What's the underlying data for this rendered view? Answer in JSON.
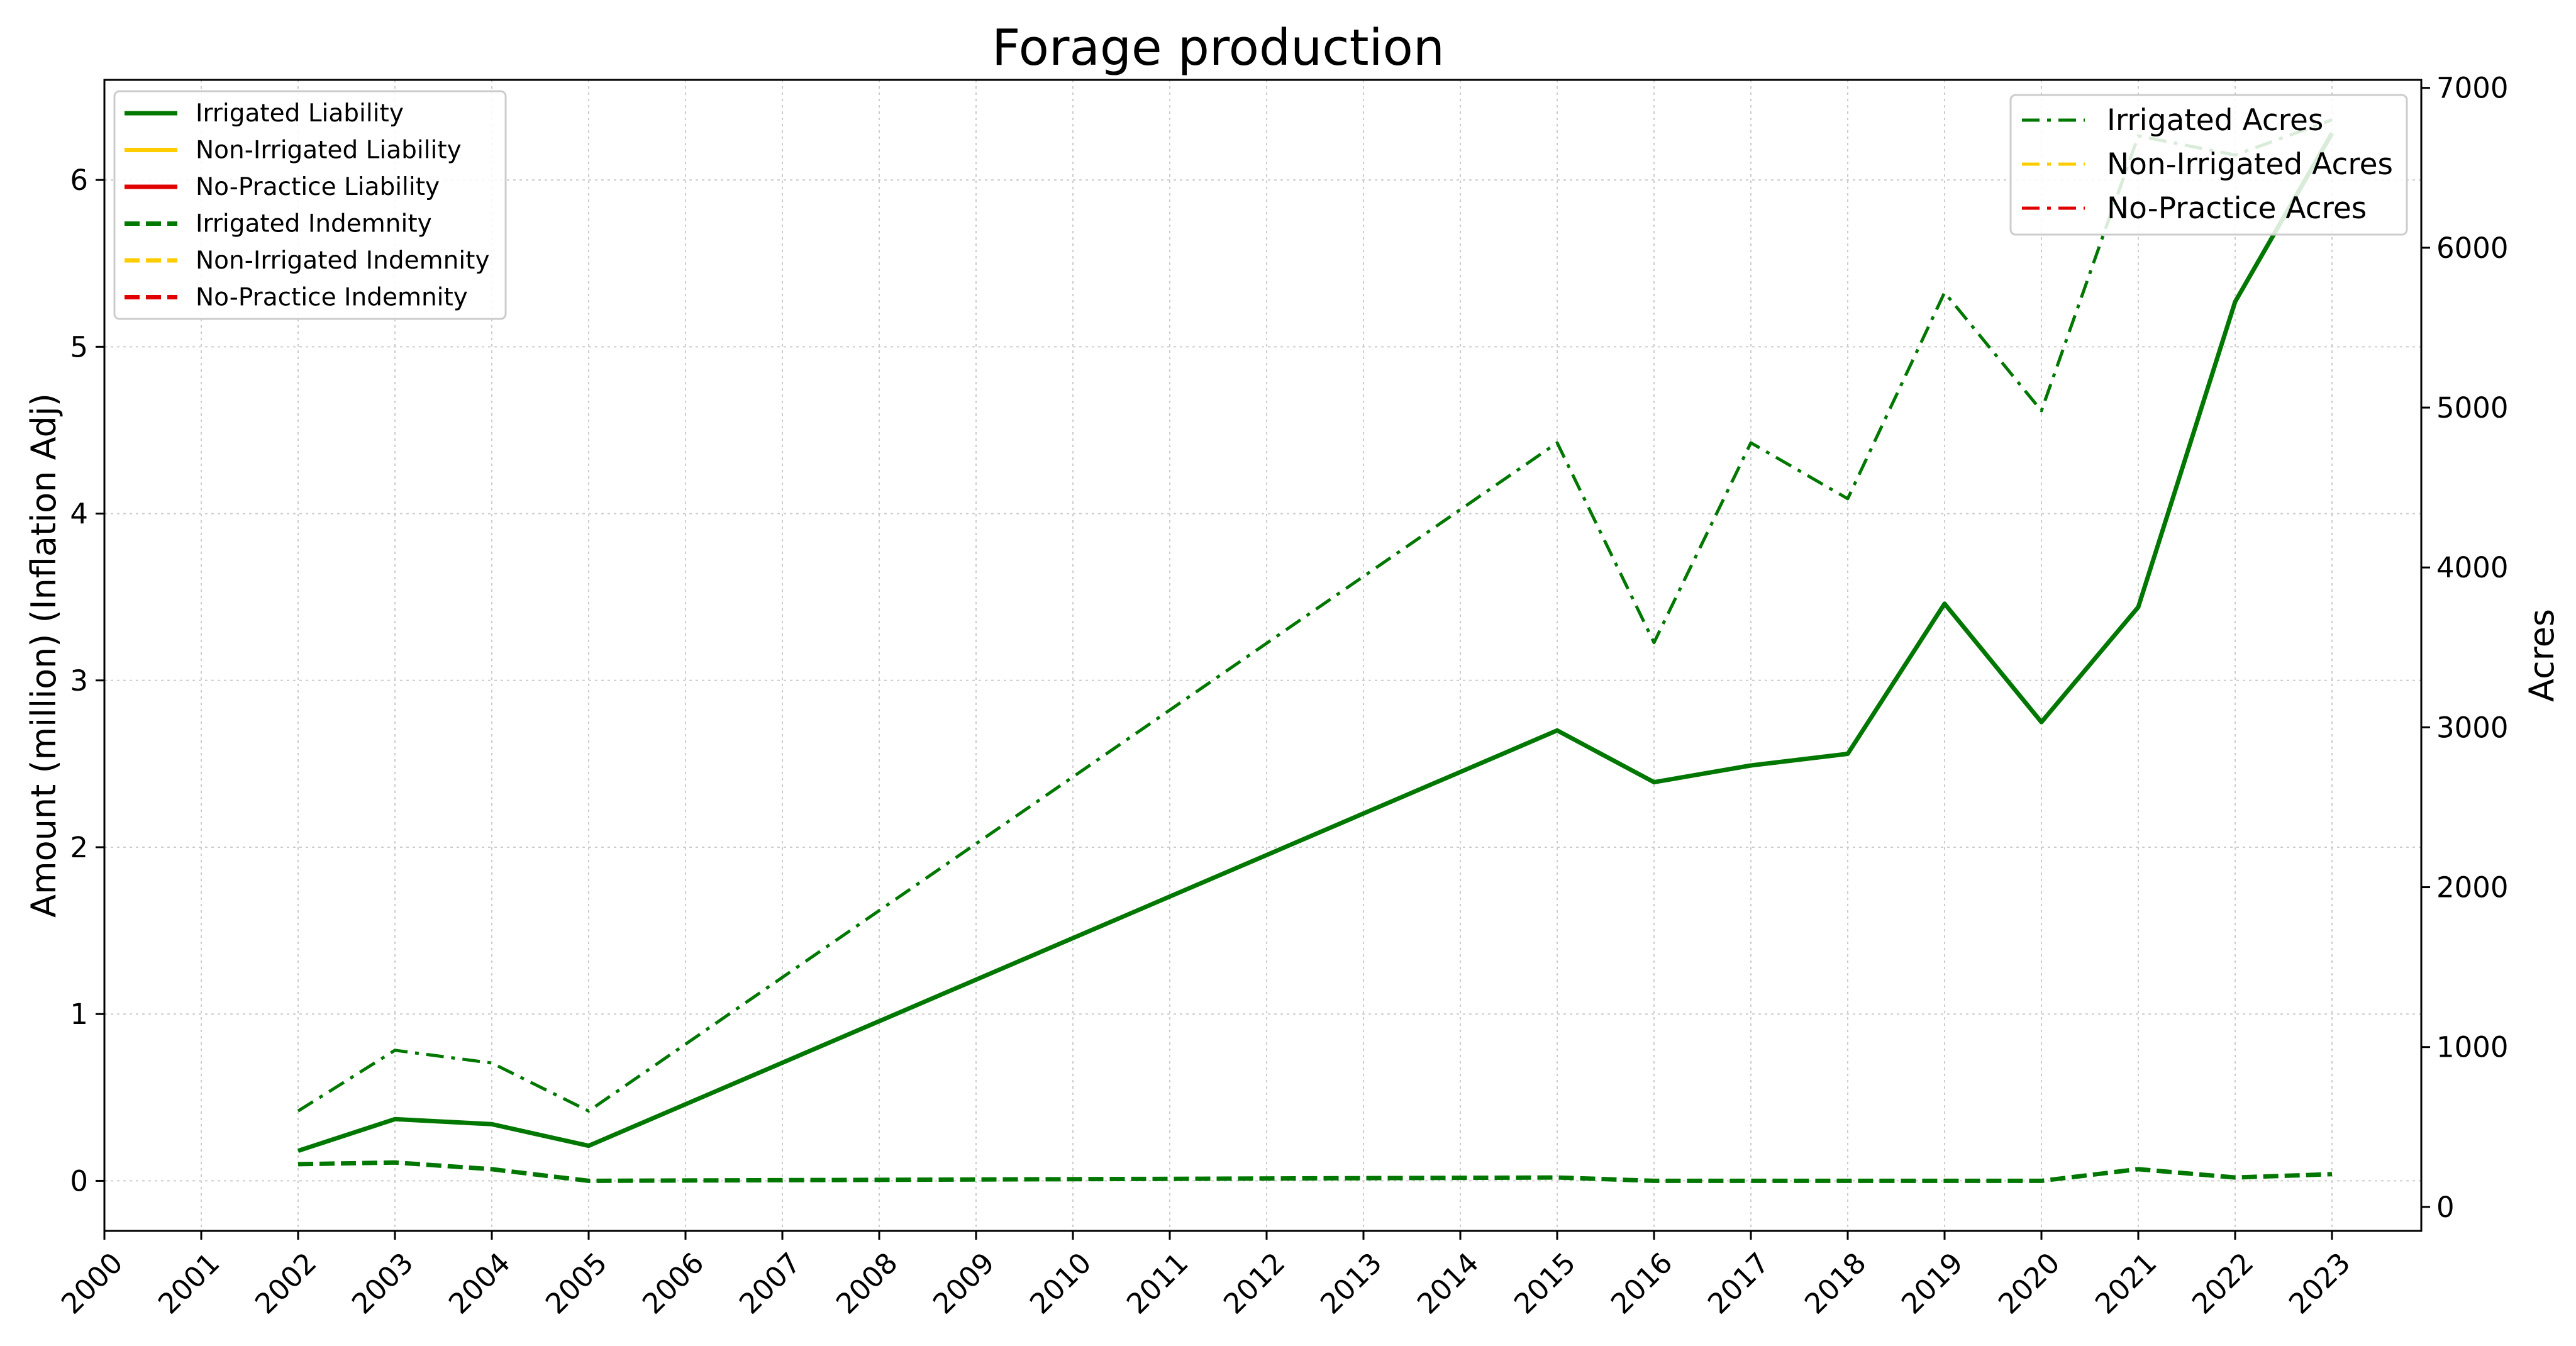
{
  "chart_data": {
    "type": "line",
    "title": "Forage production",
    "xlabel": "",
    "ylabel": "Amount (million) (Inflation Adj)",
    "y2label": "Acres",
    "x": [
      "2000",
      "2001",
      "2002",
      "2003",
      "2004",
      "2005",
      "2006",
      "2007",
      "2008",
      "2009",
      "2010",
      "2011",
      "2012",
      "2013",
      "2014",
      "2015",
      "2016",
      "2017",
      "2018",
      "2019",
      "2020",
      "2021",
      "2022",
      "2023"
    ],
    "ylim": [
      -0.3,
      6.6
    ],
    "yticks": [
      0,
      1,
      2,
      3,
      4,
      5,
      6
    ],
    "y2lim": [
      -150,
      7050
    ],
    "y2ticks": [
      0,
      1000,
      2000,
      3000,
      4000,
      5000,
      6000,
      7000
    ],
    "grid": true,
    "colors": {
      "irrigated": "#007700",
      "non_irrigated": "#ffcc00",
      "no_practice": "#e00000"
    },
    "series": [
      {
        "name": "Irrigated Liability",
        "axis": "left",
        "style": "solid",
        "color": "#007700",
        "x": [
          "2002",
          "2003",
          "2004",
          "2005",
          "2015",
          "2016",
          "2017",
          "2018",
          "2019",
          "2020",
          "2021",
          "2022",
          "2023"
        ],
        "values": [
          0.18,
          0.37,
          0.34,
          0.21,
          2.7,
          2.39,
          2.49,
          2.56,
          3.46,
          2.75,
          3.44,
          5.27,
          6.28
        ]
      },
      {
        "name": "Non-Irrigated Liability",
        "axis": "left",
        "style": "solid",
        "color": "#ffcc00",
        "x": [],
        "values": []
      },
      {
        "name": "No-Practice Liability",
        "axis": "left",
        "style": "solid",
        "color": "#e00000",
        "x": [],
        "values": []
      },
      {
        "name": "Irrigated Indemnity",
        "axis": "left",
        "style": "dashed",
        "color": "#007700",
        "x": [
          "2002",
          "2003",
          "2004",
          "2005",
          "2015",
          "2016",
          "2017",
          "2018",
          "2019",
          "2020",
          "2021",
          "2022",
          "2023"
        ],
        "values": [
          0.1,
          0.11,
          0.07,
          0.0,
          0.02,
          0.0,
          0.0,
          0.0,
          0.0,
          0.0,
          0.07,
          0.02,
          0.04
        ]
      },
      {
        "name": "Non-Irrigated Indemnity",
        "axis": "left",
        "style": "dashed",
        "color": "#ffcc00",
        "x": [],
        "values": []
      },
      {
        "name": "No-Practice Indemnity",
        "axis": "left",
        "style": "dashed",
        "color": "#e00000",
        "x": [],
        "values": []
      },
      {
        "name": "Irrigated Acres",
        "axis": "right",
        "style": "dashdot",
        "color": "#007700",
        "x": [
          "2002",
          "2003",
          "2004",
          "2005",
          "2015",
          "2016",
          "2017",
          "2018",
          "2019",
          "2020",
          "2021",
          "2022",
          "2023"
        ],
        "values": [
          600,
          980,
          900,
          600,
          4780,
          3530,
          4780,
          4430,
          5720,
          4980,
          6700,
          6580,
          6800
        ]
      },
      {
        "name": "Non-Irrigated Acres",
        "axis": "right",
        "style": "dashdot",
        "color": "#ffcc00",
        "x": [],
        "values": []
      },
      {
        "name": "No-Practice Acres",
        "axis": "right",
        "style": "dashdot",
        "color": "#e00000",
        "x": [],
        "values": []
      }
    ],
    "legend_left": {
      "placement": "top-left",
      "entries": [
        "Irrigated Liability",
        "Non-Irrigated Liability",
        "No-Practice Liability",
        "Irrigated Indemnity",
        "Non-Irrigated Indemnity",
        "No-Practice Indemnity"
      ]
    },
    "legend_right": {
      "placement": "top-right",
      "entries": [
        "Irrigated Acres",
        "Non-Irrigated Acres",
        "No-Practice Acres"
      ]
    }
  }
}
